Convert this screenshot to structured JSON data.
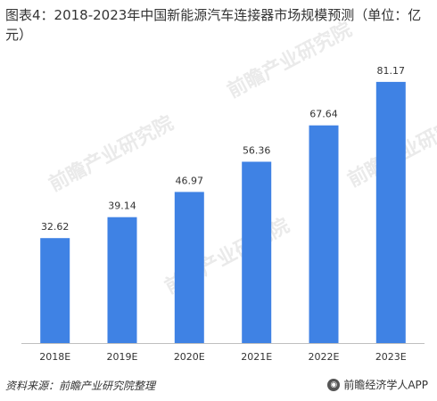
{
  "chart_data": {
    "type": "bar",
    "title": "图表4：2018-2023年中国新能源汽车连接器市场规模预测（单位：亿元）",
    "categories": [
      "2018E",
      "2019E",
      "2020E",
      "2021E",
      "2022E",
      "2023E"
    ],
    "values": [
      32.62,
      39.14,
      46.97,
      56.36,
      67.64,
      81.17
    ],
    "value_labels": [
      "32.62",
      "39.14",
      "46.97",
      "56.36",
      "67.64",
      "81.17"
    ],
    "ylim": [
      0,
      90
    ],
    "grid": false,
    "legend": "none",
    "bar_color": "#3f82e4"
  },
  "footer": {
    "source": "资料来源：前瞻产业研究院整理",
    "brand": "前瞻经济学人APP"
  },
  "watermark": {
    "text": "前瞻产业研究院"
  }
}
